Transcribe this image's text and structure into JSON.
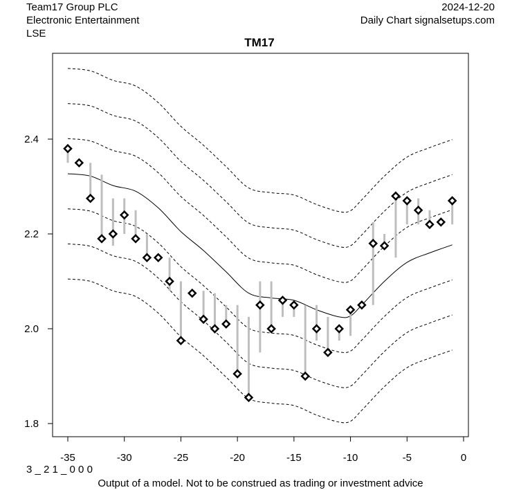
{
  "header": {
    "company": "Team17 Group PLC",
    "sector": "Electronic Entertainment",
    "exchange": "LSE",
    "date": "2024-12-20",
    "source": "Daily Chart signalsetups.com"
  },
  "footer": {
    "code": "3 _ 2 1 _ 0 0 0",
    "disclaimer": "Output of a model. Not to be construed as trading or investment advice"
  },
  "chart_data": {
    "type": "scatter",
    "title": "TM17",
    "xlabel": "",
    "ylabel": "",
    "xlim": [
      -36.5,
      0.5
    ],
    "ylim": [
      1.78,
      2.59
    ],
    "x_ticks": [
      -35,
      -30,
      -25,
      -20,
      -15,
      -10,
      -5,
      0
    ],
    "x_tick_labels": [
      "-35",
      "-30",
      "-25",
      "-20",
      "-15",
      "-10",
      "-5",
      "0"
    ],
    "y_ticks": [
      1.8,
      2.0,
      2.2,
      2.4
    ],
    "y_tick_labels": [
      "1.8",
      "2.0",
      "2.2",
      "2.4"
    ],
    "grid": false,
    "colors": {
      "points": "#000000",
      "ranges": "#bebebe",
      "bands": "#000000"
    },
    "points": {
      "x": [
        -35,
        -34,
        -33,
        -32,
        -31,
        -30,
        -29,
        -28,
        -27,
        -26,
        -25,
        -24,
        -23,
        -22,
        -21,
        -20,
        -19,
        -18,
        -17,
        -16,
        -15,
        -14,
        -13,
        -12,
        -11,
        -10,
        -9,
        -8,
        -7,
        -6,
        -5,
        -4,
        -3,
        -2,
        -1
      ],
      "close": [
        2.38,
        2.35,
        2.275,
        2.19,
        2.2,
        2.24,
        2.19,
        2.15,
        2.15,
        2.1,
        1.975,
        2.075,
        2.02,
        2.0,
        2.01,
        1.905,
        1.855,
        2.05,
        2.0,
        2.06,
        2.05,
        1.9,
        2.0,
        1.95,
        2.0,
        2.04,
        2.05,
        2.18,
        2.175,
        2.28,
        2.27,
        2.25,
        2.22,
        2.225,
        2.27
      ],
      "range_low": [
        2.35,
        2.35,
        2.275,
        2.19,
        2.175,
        2.2,
        2.19,
        2.15,
        2.15,
        2.08,
        1.975,
        2.075,
        2.02,
        1.99,
        2.01,
        1.905,
        1.855,
        1.95,
        2.0,
        2.025,
        2.025,
        1.9,
        1.975,
        1.95,
        1.975,
        1.985,
        2.05,
        2.05,
        2.175,
        2.15,
        2.22,
        2.22,
        2.22,
        2.225,
        2.22
      ],
      "range_high": [
        2.38,
        2.35,
        2.35,
        2.325,
        2.275,
        2.275,
        2.25,
        2.2,
        2.15,
        2.15,
        2.1,
        2.075,
        2.08,
        2.075,
        2.05,
        2.05,
        2.025,
        2.1,
        2.1,
        2.06,
        2.05,
        2.05,
        2.05,
        2.025,
        2.0,
        2.04,
        2.05,
        2.225,
        2.2,
        2.28,
        2.27,
        2.275,
        2.25,
        2.225,
        2.27
      ]
    },
    "bands": {
      "x": [
        -35,
        -33,
        -31,
        -29,
        -27,
        -25,
        -23,
        -21,
        -19,
        -17,
        -15,
        -13,
        -11,
        -10,
        -9,
        -7,
        -5,
        -3,
        -1
      ],
      "center": [
        2.327,
        2.322,
        2.302,
        2.29,
        2.255,
        2.205,
        2.165,
        2.12,
        2.075,
        2.065,
        2.06,
        2.04,
        2.025,
        2.027,
        2.05,
        2.1,
        2.14,
        2.16,
        2.177
      ],
      "offsets": [
        -0.222,
        -0.148,
        -0.074,
        0.074,
        0.148,
        0.222
      ]
    }
  }
}
